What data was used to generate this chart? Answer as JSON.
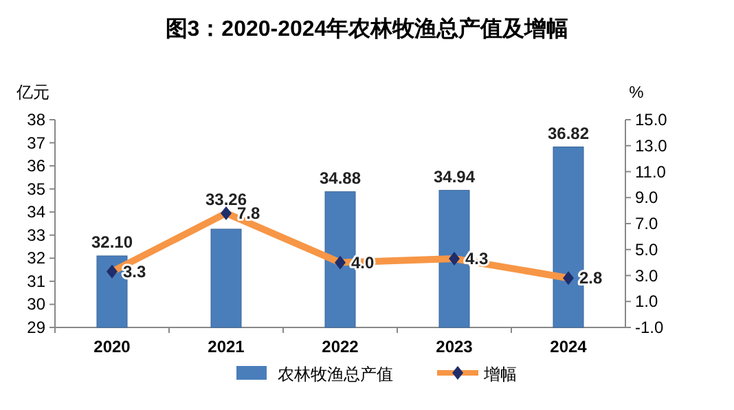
{
  "chart_data": {
    "type": "bar",
    "title": "图3：2020-2024年农林牧渔总产值及增幅",
    "ylabel": "亿元",
    "y2label": "%",
    "categories": [
      "2020",
      "2021",
      "2022",
      "2023",
      "2024"
    ],
    "series": [
      {
        "name": "农林牧渔总产值",
        "color": "#4a7ebb",
        "values": [
          32.1,
          33.26,
          34.88,
          34.94,
          36.82
        ],
        "value_labels": [
          "32.10",
          "33.26",
          "34.88",
          "34.94",
          "36.82"
        ]
      },
      {
        "name": "增幅",
        "type": "line",
        "axis": "y2",
        "color": "#f79646",
        "marker": "diamond",
        "values": [
          3.3,
          7.8,
          4.0,
          4.3,
          2.8
        ],
        "value_labels": [
          "3.3",
          "7.8",
          "4.0",
          "4.3",
          "2.8"
        ]
      }
    ],
    "ylim": [
      29,
      38
    ],
    "yticks": [
      29,
      30,
      31,
      32,
      33,
      34,
      35,
      36,
      37,
      38
    ],
    "y2lim": [
      -1,
      15
    ],
    "y2ticks": [
      {
        "value": -1,
        "label": "-1.0"
      },
      {
        "value": 1,
        "label": "1.0"
      },
      {
        "value": 3,
        "label": "3.0"
      },
      {
        "value": 5,
        "label": "5.0"
      },
      {
        "value": 7,
        "label": "7.0"
      },
      {
        "value": 9,
        "label": "9.0"
      },
      {
        "value": 11,
        "label": "11.0"
      },
      {
        "value": 13,
        "label": "13.0"
      },
      {
        "value": 15,
        "label": "15.0"
      }
    ],
    "grid": false,
    "legend": "bottom"
  }
}
